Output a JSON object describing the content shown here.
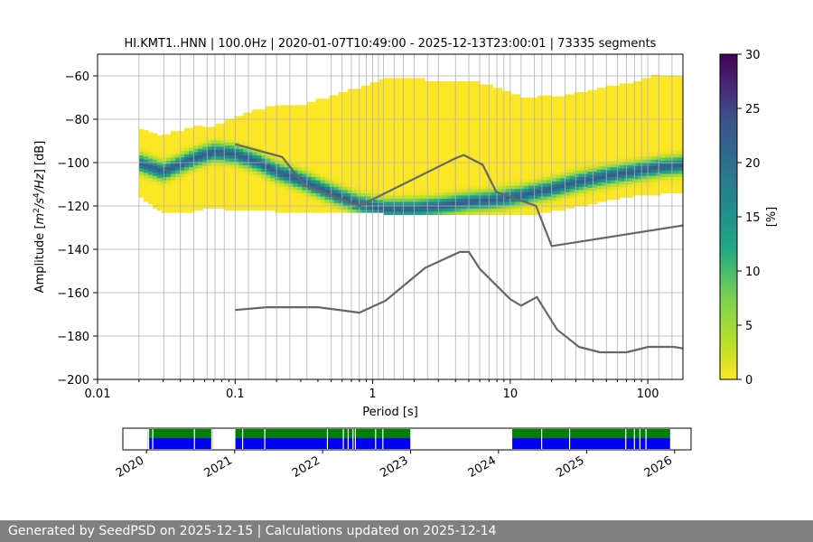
{
  "chart_data": {
    "type": "heatmap",
    "title": "HI.KMT1..HNN | 100.0Hz | 2020-01-07T10:49:00 - 2025-12-13T23:00:01 | 73335 segments",
    "xlabel": "Period [s]",
    "ylabel_parts": [
      "Amplitude [",
      "m",
      "2",
      "/s",
      "4",
      "/Hz",
      "] [dB]"
    ],
    "xscale": "log",
    "xlim": [
      0.01,
      180
    ],
    "ylim": [
      -200,
      -50
    ],
    "x_ticks": [
      {
        "v": 0.01,
        "label": "0.01"
      },
      {
        "v": 0.1,
        "label": "0.1"
      },
      {
        "v": 1,
        "label": "1"
      },
      {
        "v": 10,
        "label": "10"
      },
      {
        "v": 100,
        "label": "100"
      }
    ],
    "y_ticks": [
      {
        "v": -60,
        "label": "−60"
      },
      {
        "v": -80,
        "label": "−80"
      },
      {
        "v": -100,
        "label": "−100"
      },
      {
        "v": -120,
        "label": "−120"
      },
      {
        "v": -140,
        "label": "−140"
      },
      {
        "v": -160,
        "label": "−160"
      },
      {
        "v": -180,
        "label": "−180"
      },
      {
        "v": -200,
        "label": "−200"
      }
    ],
    "period_grid": [
      0.02,
      0.0303,
      0.04,
      0.05,
      0.0625,
      0.0714,
      0.0833,
      0.1,
      0.125,
      0.1667,
      0.2,
      0.25,
      0.333,
      0.5,
      0.6,
      0.7,
      0.8,
      0.9,
      1.0,
      1.1,
      1.2,
      1.43,
      1.67,
      2,
      2.5,
      3,
      4,
      5,
      6,
      7,
      8,
      9,
      10,
      12,
      15,
      17,
      20,
      25,
      30,
      35,
      40,
      50,
      60,
      70,
      80,
      90,
      100,
      120,
      150
    ],
    "colorbar": {
      "label": "[%]",
      "min": 0,
      "max": 30,
      "ticks": [
        {
          "v": 0,
          "label": "0"
        },
        {
          "v": 5,
          "label": "5"
        },
        {
          "v": 10,
          "label": "10"
        },
        {
          "v": 15,
          "label": "15"
        },
        {
          "v": 20,
          "label": "20"
        },
        {
          "v": 25,
          "label": "25"
        },
        {
          "v": 30,
          "label": "30"
        }
      ]
    },
    "density_band": {
      "periods": [
        0.02,
        0.03,
        0.05,
        0.07,
        0.1,
        0.15,
        0.2,
        0.3,
        0.5,
        0.8,
        1.2,
        2,
        3,
        5,
        8,
        12,
        20,
        30,
        50,
        80,
        120,
        180
      ],
      "mode_db": [
        -100,
        -104,
        -98,
        -95,
        -96,
        -100,
        -104,
        -108,
        -114,
        -119,
        -121,
        -121,
        -120,
        -118,
        -117,
        -115,
        -112,
        -109,
        -106,
        -104,
        -102,
        -101
      ],
      "top_db": [
        -85,
        -88,
        -84,
        -84,
        -80,
        -76,
        -75,
        -74,
        -70,
        -66,
        -62,
        -62,
        -63,
        -63,
        -66,
        -70,
        -70,
        -69,
        -66,
        -64,
        -60,
        -60
      ],
      "bottom_db": [
        -115,
        -123,
        -122,
        -120,
        -122,
        -122,
        -122,
        -123,
        -123,
        -123,
        -123,
        -124,
        -124,
        -124,
        -124,
        -124,
        -122,
        -120,
        -117,
        -115,
        -114,
        -113
      ]
    },
    "series": [
      {
        "periods": [
          0.1,
          0.22,
          0.32,
          0.8,
          4.0,
          4.6,
          6.3,
          7.9,
          15.4,
          20,
          180
        ],
        "values": [
          -91.5,
          -97.4,
          -110.5,
          -120.0,
          -98.0,
          -96.5,
          -101.0,
          -113.5,
          -120.0,
          -138.5,
          -129.0
        ]
      },
      {
        "periods": [
          0.1,
          0.17,
          0.4,
          0.8,
          1.24,
          2.4,
          4.3,
          5.0,
          6.0,
          10.0,
          12.0,
          15.6,
          21.9,
          31.6,
          45.0,
          70.0,
          101.0,
          154.0,
          180
        ],
        "values": [
          -168.0,
          -166.7,
          -166.7,
          -169.2,
          -163.7,
          -148.6,
          -141.2,
          -141.2,
          -149.0,
          -163.0,
          -166.0,
          -162.0,
          -177.0,
          -185.0,
          -187.5,
          -187.5,
          -185.0,
          -185.0,
          -185.7
        ]
      }
    ]
  },
  "timeline": {
    "years": [
      "2020",
      "2021",
      "2022",
      "2023",
      "2024",
      "2025",
      "2026"
    ],
    "start": "2020-01-07",
    "blocks": [
      [
        "2020-01-07",
        "2020-10-01"
      ],
      [
        "2021-01-04",
        "2022-12-31"
      ],
      [
        "2024-02-27",
        "2025-12-13"
      ]
    ],
    "gaps": [
      "2020-01-10",
      "2020-01-27",
      "2020-07-18",
      "2020-09-28",
      "2021-02-03",
      "2021-05-06",
      "2022-01-21",
      "2022-03-28",
      "2022-04-17",
      "2022-05-07",
      "2022-05-17",
      "2022-08-09",
      "2022-09-08",
      "2024-06-28",
      "2024-10-22",
      "2025-06-12",
      "2025-07-18",
      "2025-08-10",
      "2025-09-04"
    ],
    "colors": {
      "top": "#008000",
      "bottom": "#0000ff"
    }
  },
  "footer": "Generated by SeedPSD on 2025-12-15 | Calculations updated on 2025-12-14"
}
